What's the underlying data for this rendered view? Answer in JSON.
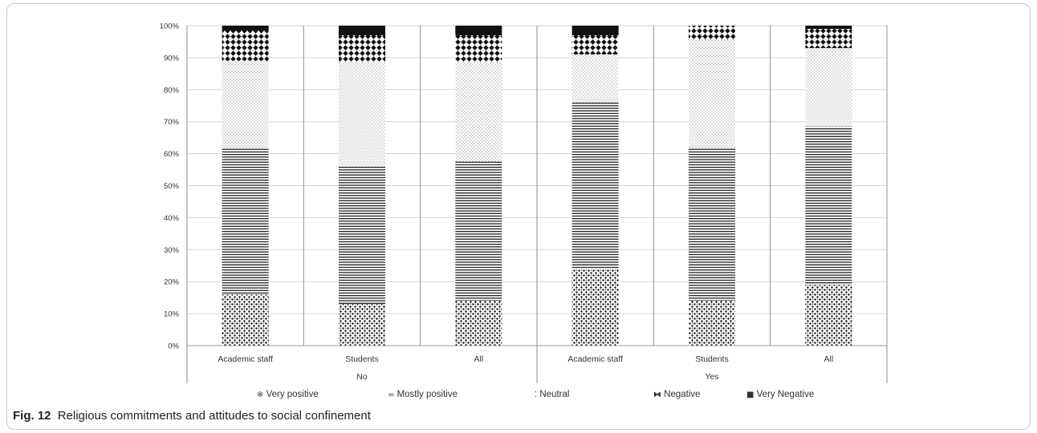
{
  "figure": {
    "label": "Fig. 12",
    "caption": "Religious commitments and attitudes to social confinement"
  },
  "chart_data": {
    "type": "bar",
    "stacked": true,
    "normalized": true,
    "title": "",
    "xlabel": "",
    "ylabel": "",
    "ylim": [
      0,
      100
    ],
    "y_ticks": [
      "0%",
      "10%",
      "20%",
      "30%",
      "40%",
      "50%",
      "60%",
      "70%",
      "80%",
      "90%",
      "100%"
    ],
    "groups": [
      {
        "label": "No",
        "categories": [
          "Academic staff",
          "Students",
          "All"
        ]
      },
      {
        "label": "Yes",
        "categories": [
          "Academic staff",
          "Students",
          "All"
        ]
      }
    ],
    "categories": [
      "Academic staff",
      "Students",
      "All",
      "Academic staff",
      "Students",
      "All"
    ],
    "series": [
      {
        "name": "Very positive",
        "pattern": "dots",
        "values": [
          16,
          13,
          14,
          24,
          14,
          19
        ]
      },
      {
        "name": "Mostly positive",
        "pattern": "horizontal-lines",
        "values": [
          46,
          43,
          43.5,
          52,
          48,
          49.5
        ]
      },
      {
        "name": "Neutral",
        "pattern": "fine-dots",
        "values": [
          27,
          32.5,
          31,
          15,
          33.5,
          24.5
        ]
      },
      {
        "name": "Negative",
        "pattern": "diamonds",
        "values": [
          9.5,
          8.5,
          8.5,
          6,
          4.5,
          6
        ]
      },
      {
        "name": "Very Negative",
        "pattern": "solid",
        "values": [
          1.5,
          3,
          3,
          3,
          0,
          1
        ]
      }
    ],
    "legend_position": "bottom",
    "legend_symbols": [
      "※",
      "=",
      "⁚",
      "⧓",
      "■"
    ],
    "grid": true
  }
}
